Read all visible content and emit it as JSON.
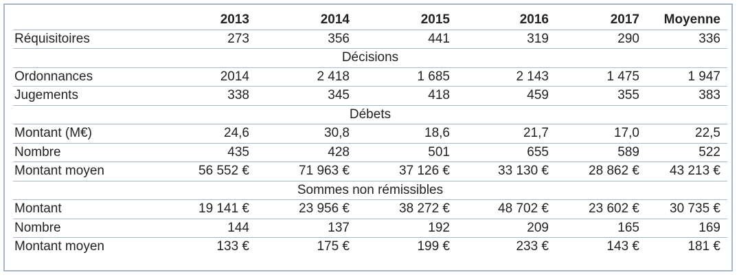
{
  "columns": [
    "",
    "2013",
    "2014",
    "2015",
    "2016",
    "2017",
    "Moyenne"
  ],
  "rows": [
    {
      "type": "data",
      "label": "Réquisitoires",
      "values": [
        "273",
        "356",
        "441",
        "319",
        "290",
        "336"
      ]
    },
    {
      "type": "section",
      "title": "Décisions"
    },
    {
      "type": "data",
      "label": "Ordonnances",
      "values": [
        "2014",
        "2 418",
        "1 685",
        "2 143",
        "1 475",
        "1 947"
      ]
    },
    {
      "type": "data",
      "label": "Jugements",
      "values": [
        "338",
        "345",
        "418",
        "459",
        "355",
        "383"
      ]
    },
    {
      "type": "section",
      "title": "Débets"
    },
    {
      "type": "data",
      "label": "Montant (M€)",
      "values": [
        "24,6",
        "30,8",
        "18,6",
        "21,7",
        "17,0",
        "22,5"
      ]
    },
    {
      "type": "data",
      "label": "Nombre",
      "values": [
        "435",
        "428",
        "501",
        "655",
        "589",
        "522"
      ]
    },
    {
      "type": "data",
      "label": "Montant moyen",
      "values": [
        "56 552 €",
        "71 963 €",
        "37 126 €",
        "33 130 €",
        "28 862 €",
        "43 213 €"
      ]
    },
    {
      "type": "section",
      "title": "Sommes non rémissibles"
    },
    {
      "type": "data",
      "label": "Montant",
      "values": [
        "19 141 €",
        "23 956 €",
        "38 272 €",
        "48 702 €",
        "23 602 €",
        "30 735 €"
      ]
    },
    {
      "type": "data",
      "label": "Nombre",
      "values": [
        "144",
        "137",
        "192",
        "209",
        "165",
        "169"
      ]
    },
    {
      "type": "data",
      "label": "Montant moyen",
      "values": [
        "133 €",
        "175 €",
        "199 €",
        "233 €",
        "143 €",
        "181 €"
      ]
    }
  ]
}
